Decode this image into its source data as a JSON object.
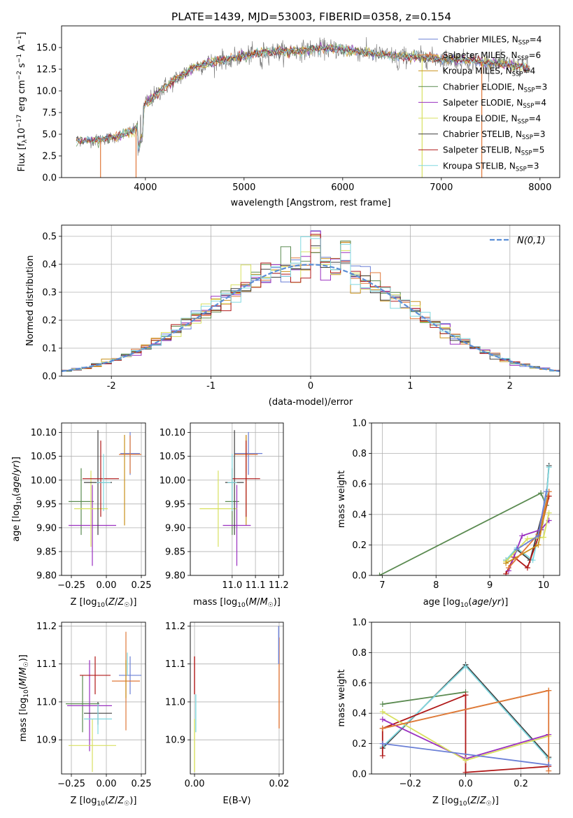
{
  "figure_title": "PLATE=1439, MJD=53003, FIBERID=0358, z=0.154",
  "colors": {
    "Chabrier MILES": "#6a7fd6",
    "Salpeter MILES": "#e0783a",
    "Kroupa MILES": "#c8901a",
    "Chabrier ELODIE": "#5a8a50",
    "Salpeter ELODIE": "#9a30c0",
    "Kroupa ELODIE": "#d8e060",
    "Chabrier STELIB": "#404040",
    "Salpeter STELIB": "#b01818",
    "Kroupa STELIB": "#80d8e0",
    "gaussian": "#5b8ed6",
    "spectrum": "#808080"
  },
  "chart_data": [
    {
      "id": "spectrum",
      "type": "line",
      "title": "PLATE=1439, MJD=53003, FIBERID=0358, z=0.154",
      "xlabel": "wavelength [Angstrom, rest frame]",
      "ylabel": "Flux [f_λ 10^-17 erg cm^-2 s^-1 A^-1]",
      "xlim": [
        3150,
        8200
      ],
      "ylim": [
        0,
        17.5
      ],
      "xticks": [
        4000,
        5000,
        6000,
        7000,
        8000
      ],
      "yticks": [
        0.0,
        2.5,
        5.0,
        7.5,
        10.0,
        12.5,
        15.0
      ],
      "grid": false,
      "legend_position": "right",
      "legend": [
        "Chabrier MILES, N_SSP=4",
        "Salpeter MILES, N_SSP=6",
        "Kroupa MILES, N_SSP=4",
        "Chabrier ELODIE, N_SSP=3",
        "Salpeter ELODIE, N_SSP=4",
        "Kroupa ELODIE, N_SSP=4",
        "Chabrier STELIB, N_SSP=3",
        "Salpeter STELIB, N_SSP=5",
        "Kroupa STELIB, N_SSP=3"
      ],
      "continuum_x": [
        3300,
        3500,
        3700,
        3900,
        4000,
        4200,
        4500,
        4800,
        5000,
        5200,
        5500,
        5800,
        6000,
        6300,
        6500,
        6800,
        7000,
        7300,
        7500,
        7700,
        7900
      ],
      "continuum_y": [
        4.3,
        4.3,
        4.7,
        5.5,
        8.5,
        10.5,
        12.8,
        13.7,
        14.0,
        14.5,
        14.6,
        14.9,
        14.8,
        14.3,
        14.0,
        13.9,
        13.7,
        13.5,
        13.2,
        13.0,
        12.6
      ]
    },
    {
      "id": "residuals",
      "type": "histogram",
      "xlabel": "(data-model)/error",
      "ylabel": "Normed distribution",
      "xlim": [
        -2.5,
        2.5
      ],
      "ylim": [
        0,
        0.54
      ],
      "xticks": [
        -2,
        -1,
        0,
        1,
        2
      ],
      "yticks": [
        0.0,
        0.1,
        0.2,
        0.3,
        0.4,
        0.5
      ],
      "grid": true,
      "legend_position": "top-right",
      "legend": [
        "N(0,1)"
      ],
      "bin_width": 0.1,
      "model": "normal(0,1)"
    },
    {
      "id": "age_vs_Z",
      "type": "errorbar",
      "xlabel": "Z [log10(Z/Z☉)]",
      "ylabel": "age [log10(age/yr)]",
      "xlim": [
        -0.32,
        0.28
      ],
      "ylim": [
        9.8,
        10.12
      ],
      "xticks": [
        -0.25,
        0.0,
        0.25
      ],
      "xticklabels": [
        "−0.25",
        "0.00",
        "0.25"
      ],
      "yticks": [
        9.8,
        9.85,
        9.9,
        9.95,
        10.0,
        10.05,
        10.1
      ],
      "yticklabels": [
        "9.80",
        "9.85",
        "9.90",
        "9.95",
        "10.00",
        "10.05",
        "10.10"
      ],
      "grid": true,
      "points": [
        {
          "model": "Chabrier MILES",
          "x": 0.17,
          "xerr": 0.07,
          "y": 10.056,
          "yerr": 0.045
        },
        {
          "model": "Salpeter MILES",
          "x": 0.17,
          "xerr": 0.08,
          "y": 10.054,
          "yerr": 0.04
        },
        {
          "model": "Kroupa MILES",
          "x": 0.13,
          "xerr": 0.0,
          "y": 10.0,
          "yerr": 0.095
        },
        {
          "model": "Chabrier ELODIE",
          "x": -0.18,
          "xerr": 0.09,
          "y": 9.955,
          "yerr": 0.07
        },
        {
          "model": "Salpeter ELODIE",
          "x": -0.1,
          "xerr": 0.17,
          "y": 9.905,
          "yerr": 0.085
        },
        {
          "model": "Kroupa ELODIE",
          "x": -0.11,
          "xerr": 0.12,
          "y": 9.94,
          "yerr": 0.08
        },
        {
          "model": "Chabrier STELIB",
          "x": -0.06,
          "xerr": 0.1,
          "y": 9.995,
          "yerr": 0.11
        },
        {
          "model": "Salpeter STELIB",
          "x": -0.04,
          "xerr": 0.13,
          "y": 10.003,
          "yerr": 0.08
        },
        {
          "model": "Kroupa STELIB",
          "x": -0.02,
          "xerr": 0.05,
          "y": 9.995,
          "yerr": 0.06
        }
      ]
    },
    {
      "id": "age_vs_mass",
      "type": "errorbar",
      "xlabel": "mass [log10(M/M☉)]",
      "xlim": [
        10.82,
        11.22
      ],
      "ylim": [
        9.8,
        10.12
      ],
      "xticks": [
        11.0,
        11.1,
        11.2
      ],
      "xticklabels": [
        "11.0",
        "11.1",
        "11.2"
      ],
      "yticks": [
        9.8,
        9.85,
        9.9,
        9.95,
        10.0,
        10.05,
        10.1
      ],
      "yticklabels": [
        "9.80",
        "9.85",
        "9.90",
        "9.95",
        "10.00",
        "10.05",
        "10.10"
      ],
      "grid": true,
      "points": [
        {
          "model": "Chabrier MILES",
          "x": 11.07,
          "xerr": 0.06,
          "y": 10.056,
          "yerr": 0.045
        },
        {
          "model": "Salpeter MILES",
          "x": 11.06,
          "xerr": 0.05,
          "y": 10.054,
          "yerr": 0.04
        },
        {
          "model": "Kroupa MILES",
          "x": 11.06,
          "xerr": 0.0,
          "y": 10.0,
          "yerr": 0.095
        },
        {
          "model": "Chabrier ELODIE",
          "x": 11.0,
          "xerr": 0.03,
          "y": 9.955,
          "yerr": 0.07
        },
        {
          "model": "Salpeter ELODIE",
          "x": 11.02,
          "xerr": 0.06,
          "y": 9.905,
          "yerr": 0.085
        },
        {
          "model": "Kroupa ELODIE",
          "x": 10.94,
          "xerr": 0.08,
          "y": 9.94,
          "yerr": 0.08
        },
        {
          "model": "Chabrier STELIB",
          "x": 11.01,
          "xerr": 0.04,
          "y": 9.995,
          "yerr": 0.11
        },
        {
          "model": "Salpeter STELIB",
          "x": 11.06,
          "xerr": 0.06,
          "y": 10.003,
          "yerr": 0.08
        },
        {
          "model": "Kroupa STELIB",
          "x": 11.0,
          "xerr": 0.02,
          "y": 9.995,
          "yerr": 0.06
        }
      ]
    },
    {
      "id": "weight_vs_age",
      "type": "line",
      "xlabel": "age [log10(age/yr)]",
      "ylabel": "mass weight",
      "xlim": [
        6.8,
        10.3
      ],
      "ylim": [
        0,
        1.0
      ],
      "xticks": [
        7,
        8,
        9,
        10
      ],
      "yticks": [
        0.0,
        0.2,
        0.4,
        0.6,
        0.8,
        1.0
      ],
      "grid": true,
      "series": [
        {
          "model": "Chabrier ELODIE",
          "x": [
            6.95,
            9.95,
            10.05
          ],
          "y": [
            0.0,
            0.54,
            0.46
          ]
        },
        {
          "model": "Chabrier STELIB",
          "x": [
            9.3,
            9.5,
            9.75,
            10.05,
            10.1
          ],
          "y": [
            0.1,
            0.17,
            0.1,
            0.5,
            0.72
          ]
        },
        {
          "model": "Kroupa STELIB",
          "x": [
            9.3,
            9.5,
            9.8,
            10.05,
            10.1
          ],
          "y": [
            0.1,
            0.18,
            0.1,
            0.5,
            0.71
          ]
        },
        {
          "model": "Salpeter STELIB",
          "x": [
            9.3,
            9.45,
            9.7,
            9.95,
            10.1
          ],
          "y": [
            0.01,
            0.12,
            0.05,
            0.3,
            0.52
          ]
        },
        {
          "model": "Salpeter ELODIE",
          "x": [
            9.35,
            9.6,
            9.95,
            10.1
          ],
          "y": [
            0.03,
            0.26,
            0.3,
            0.36
          ]
        },
        {
          "model": "Kroupa ELODIE",
          "x": [
            9.3,
            9.7,
            10.0,
            10.1
          ],
          "y": [
            0.09,
            0.24,
            0.25,
            0.41
          ]
        },
        {
          "model": "Kroupa MILES",
          "x": [
            9.3,
            9.9,
            10.1
          ],
          "y": [
            0.08,
            0.2,
            0.55
          ]
        },
        {
          "model": "Salpeter MILES",
          "x": [
            9.35,
            9.9,
            10.1
          ],
          "y": [
            0.05,
            0.27,
            0.55
          ]
        },
        {
          "model": "Chabrier MILES",
          "x": [
            9.5,
            9.9,
            10.05
          ],
          "y": [
            0.17,
            0.26,
            0.55
          ]
        }
      ]
    },
    {
      "id": "mass_vs_Z",
      "type": "errorbar",
      "xlabel": "Z [log10(Z/Z☉)]",
      "ylabel": "mass [log10(M/M☉)]",
      "xlim": [
        -0.32,
        0.28
      ],
      "ylim": [
        10.81,
        11.21
      ],
      "xticks": [
        -0.25,
        0.0,
        0.25
      ],
      "xticklabels": [
        "−0.25",
        "0.00",
        "0.25"
      ],
      "yticks": [
        10.9,
        11.0,
        11.1,
        11.2
      ],
      "yticklabels": [
        "10.9",
        "11.0",
        "11.1",
        "11.2"
      ],
      "grid": true,
      "points": [
        {
          "model": "Chabrier MILES",
          "x": 0.17,
          "xerr": 0.08,
          "y": 11.07,
          "yerr": 0.05
        },
        {
          "model": "Salpeter MILES",
          "x": 0.14,
          "xerr": 0.1,
          "y": 11.055,
          "yerr": 0.13
        },
        {
          "model": "Kroupa MILES",
          "x": 0.14,
          "xerr": 0.0,
          "y": 11.06,
          "yerr": 0.05
        },
        {
          "model": "Chabrier ELODIE",
          "x": -0.17,
          "xerr": 0.12,
          "y": 10.995,
          "yerr": 0.075
        },
        {
          "model": "Salpeter ELODIE",
          "x": -0.12,
          "xerr": 0.16,
          "y": 10.99,
          "yerr": 0.12
        },
        {
          "model": "Kroupa ELODIE",
          "x": -0.1,
          "xerr": 0.17,
          "y": 10.885,
          "yerr": 0.07
        },
        {
          "model": "Chabrier STELIB",
          "x": -0.06,
          "xerr": 0.1,
          "y": 10.97,
          "yerr": 0.03
        },
        {
          "model": "Salpeter STELIB",
          "x": -0.08,
          "xerr": 0.11,
          "y": 11.07,
          "yerr": 0.05
        },
        {
          "model": "Kroupa STELIB",
          "x": -0.06,
          "xerr": 0.1,
          "y": 10.955,
          "yerr": 0.04
        },
        {
          "model": "Kroupa STELIB",
          "x": 0.15,
          "xerr": 0.0,
          "y": 11.1,
          "yerr": 0.03
        }
      ]
    },
    {
      "id": "mass_vs_ebv",
      "type": "errorbar",
      "xlabel": "E(B-V)",
      "xlim": [
        -0.001,
        0.021
      ],
      "ylim": [
        10.81,
        11.21
      ],
      "xticks": [
        0.0,
        0.02
      ],
      "xticklabels": [
        "0.00",
        "0.02"
      ],
      "yticks": [
        10.9,
        11.0,
        11.1,
        11.2
      ],
      "yticklabels": [
        "10.9",
        "11.0",
        "11.1",
        "11.2"
      ],
      "grid": true,
      "points": [
        {
          "model": "Salpeter STELIB",
          "x": 0.0,
          "xerr": 0.0,
          "y": 11.07,
          "yerr": 0.05
        },
        {
          "model": "Kroupa ELODIE",
          "x": 0.0,
          "xerr": 0.0,
          "y": 10.885,
          "yerr": 0.07
        },
        {
          "model": "Kroupa STELIB",
          "x": 0.0003,
          "xerr": 0.0,
          "y": 10.97,
          "yerr": 0.05
        },
        {
          "model": "Salpeter MILES",
          "x": 0.02,
          "xerr": 0.0,
          "y": 11.05,
          "yerr": 0.12
        },
        {
          "model": "Chabrier MILES",
          "x": 0.0199,
          "xerr": 0.0,
          "y": 11.15,
          "yerr": 0.05
        }
      ]
    },
    {
      "id": "weight_vs_Z",
      "type": "line",
      "xlabel": "Z [log10(Z/Z☉)]",
      "ylabel": "mass weight",
      "xlim": [
        -0.34,
        0.34
      ],
      "ylim": [
        0,
        1.0
      ],
      "xticks": [
        -0.2,
        0.0,
        0.2
      ],
      "xticklabels": [
        "−0.2",
        "0.0",
        "0.2"
      ],
      "yticks": [
        0.0,
        0.2,
        0.4,
        0.6,
        0.8,
        1.0
      ],
      "grid": true,
      "series": [
        {
          "model": "Chabrier ELODIE",
          "x": [
            -0.3,
            0.0
          ],
          "y": [
            0.46,
            0.54
          ]
        },
        {
          "model": "Chabrier STELIB",
          "x": [
            -0.3,
            0.0,
            0.3
          ],
          "y": [
            0.17,
            0.72,
            0.11
          ]
        },
        {
          "model": "Kroupa STELIB",
          "x": [
            -0.3,
            0.0,
            0.3
          ],
          "y": [
            0.18,
            0.71,
            0.1
          ]
        },
        {
          "model": "Salpeter STELIB",
          "x": [
            -0.3,
            -0.3,
            0.0,
            0.0,
            0.3
          ],
          "y": [
            0.12,
            0.3,
            0.52,
            0.01,
            0.05
          ]
        },
        {
          "model": "Salpeter ELODIE",
          "x": [
            -0.3,
            0.0,
            0.3
          ],
          "y": [
            0.36,
            0.1,
            0.26
          ]
        },
        {
          "model": "Kroupa ELODIE",
          "x": [
            -0.3,
            0.0,
            0.3
          ],
          "y": [
            0.41,
            0.09,
            0.25
          ]
        },
        {
          "model": "Kroupa MILES",
          "x": [
            -0.3,
            0.3
          ],
          "y": [
            0.3,
            0.55
          ]
        },
        {
          "model": "Salpeter MILES",
          "x": [
            -0.3,
            0.3,
            0.3
          ],
          "y": [
            0.3,
            0.55,
            0.02
          ]
        },
        {
          "model": "Chabrier MILES",
          "x": [
            -0.3,
            0.3
          ],
          "y": [
            0.2,
            0.06
          ]
        }
      ]
    }
  ]
}
